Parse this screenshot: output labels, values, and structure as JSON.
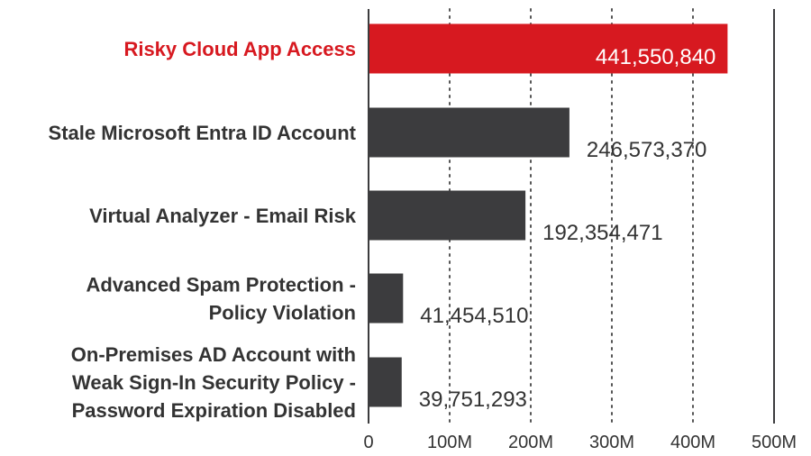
{
  "chart_data": {
    "type": "bar",
    "orientation": "horizontal",
    "categories": [
      [
        "Risky Cloud App Access"
      ],
      [
        "Stale Microsoft Entra ID Account"
      ],
      [
        "Virtual Analyzer - Email Risk"
      ],
      [
        "Advanced Spam Protection -",
        "Policy Violation"
      ],
      [
        "On-Premises AD Account with",
        "Weak Sign-In Security Policy -",
        "Password Expiration Disabled"
      ]
    ],
    "values": [
      441550840,
      246573370,
      192354471,
      41454510,
      39751293
    ],
    "value_labels": [
      "441,550,840",
      "246,573,370",
      "192,354,471",
      "41,454,510",
      "39,751,293"
    ],
    "highlight_index": 0,
    "xlim": [
      0,
      500000000
    ],
    "xticks": [
      0,
      100000000,
      200000000,
      300000000,
      400000000,
      500000000
    ],
    "xtick_labels": [
      "0",
      "100M",
      "200M",
      "300M",
      "400M",
      "500M"
    ],
    "grid": "vertical-dotted",
    "legend": "none",
    "colors": {
      "highlight": "#d71920",
      "bar": "#3c3c3e",
      "highlight_text": "#d71920",
      "text": "#333333",
      "axis": "#3c3c3e",
      "grid": "#555555"
    }
  }
}
